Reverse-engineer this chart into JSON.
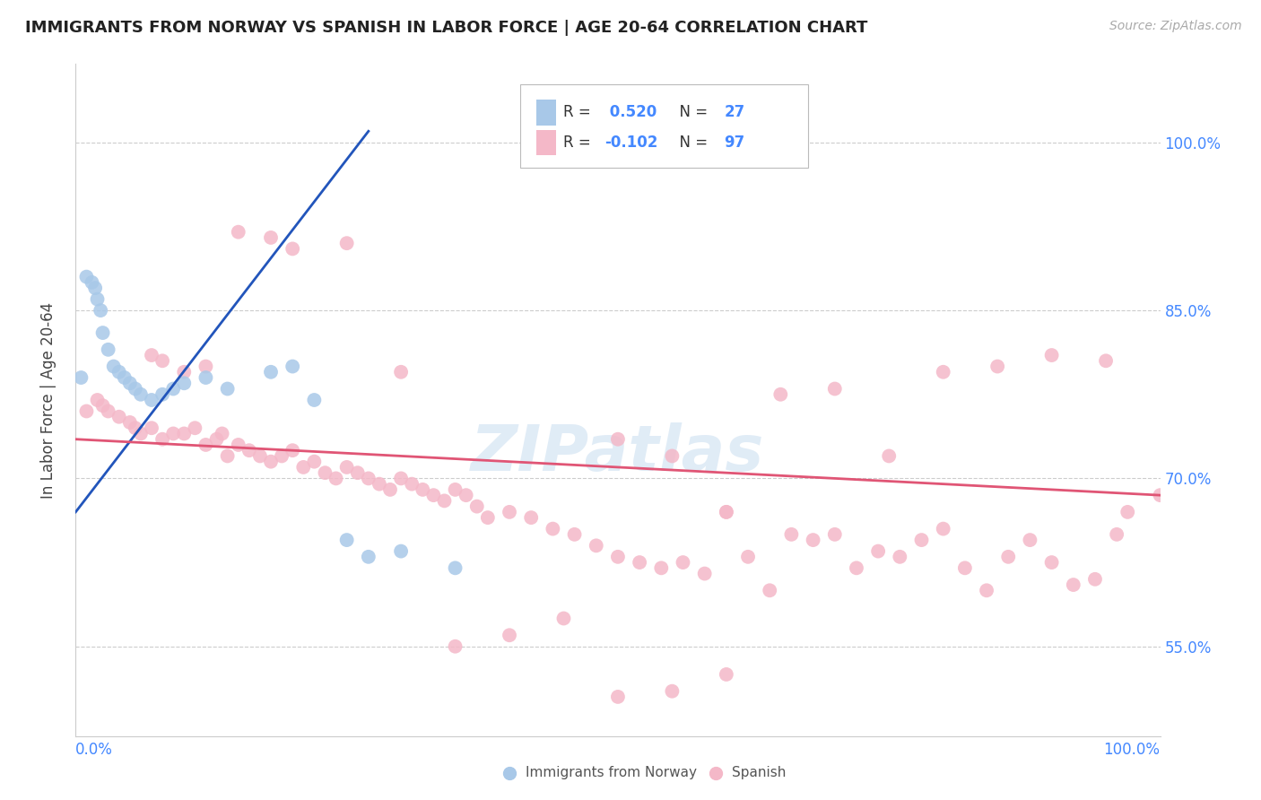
{
  "title": "IMMIGRANTS FROM NORWAY VS SPANISH IN LABOR FORCE | AGE 20-64 CORRELATION CHART",
  "source": "Source: ZipAtlas.com",
  "ylabel": "In Labor Force | Age 20-64",
  "norway_color": "#a8c8e8",
  "spanish_color": "#f4b8c8",
  "norway_line_color": "#2255bb",
  "spanish_line_color": "#e05575",
  "legend_norway_R": "0.520",
  "legend_norway_N": "27",
  "legend_spanish_R": "-0.102",
  "legend_spanish_N": "97",
  "watermark": "ZIPatlas",
  "norway_x": [
    0.5,
    1.0,
    1.5,
    1.8,
    2.0,
    2.3,
    2.5,
    3.0,
    3.5,
    4.0,
    4.5,
    5.0,
    5.5,
    6.0,
    7.0,
    8.0,
    9.0,
    10.0,
    12.0,
    14.0,
    18.0,
    20.0,
    22.0,
    25.0,
    27.0,
    30.0,
    35.0
  ],
  "norway_y": [
    79.0,
    88.0,
    87.5,
    87.0,
    86.0,
    85.0,
    83.0,
    81.5,
    80.0,
    79.5,
    79.0,
    78.5,
    78.0,
    77.5,
    77.0,
    77.5,
    78.0,
    78.5,
    79.0,
    78.0,
    79.5,
    80.0,
    77.0,
    64.5,
    63.0,
    63.5,
    62.0
  ],
  "spanish_x": [
    1.0,
    2.0,
    2.5,
    3.0,
    4.0,
    5.0,
    5.5,
    6.0,
    7.0,
    8.0,
    9.0,
    10.0,
    11.0,
    12.0,
    13.0,
    13.5,
    14.0,
    15.0,
    16.0,
    17.0,
    18.0,
    19.0,
    20.0,
    21.0,
    22.0,
    23.0,
    24.0,
    25.0,
    26.0,
    27.0,
    28.0,
    29.0,
    30.0,
    31.0,
    32.0,
    33.0,
    34.0,
    35.0,
    36.0,
    37.0,
    38.0,
    40.0,
    42.0,
    44.0,
    46.0,
    48.0,
    50.0,
    52.0,
    54.0,
    56.0,
    58.0,
    60.0,
    62.0,
    64.0,
    66.0,
    68.0,
    70.0,
    72.0,
    74.0,
    76.0,
    78.0,
    80.0,
    82.0,
    84.0,
    86.0,
    88.0,
    90.0,
    92.0,
    94.0,
    96.0,
    97.0,
    7.0,
    8.0,
    10.0,
    12.0,
    15.0,
    18.0,
    20.0,
    25.0,
    30.0,
    35.0,
    40.0,
    45.0,
    50.0,
    55.0,
    60.0,
    65.0,
    70.0,
    75.0,
    80.0,
    85.0,
    90.0,
    95.0,
    100.0,
    50.0,
    55.0,
    60.0
  ],
  "spanish_y": [
    76.0,
    77.0,
    76.5,
    76.0,
    75.5,
    75.0,
    74.5,
    74.0,
    74.5,
    73.5,
    74.0,
    74.0,
    74.5,
    73.0,
    73.5,
    74.0,
    72.0,
    73.0,
    72.5,
    72.0,
    71.5,
    72.0,
    72.5,
    71.0,
    71.5,
    70.5,
    70.0,
    71.0,
    70.5,
    70.0,
    69.5,
    69.0,
    70.0,
    69.5,
    69.0,
    68.5,
    68.0,
    69.0,
    68.5,
    67.5,
    66.5,
    67.0,
    66.5,
    65.5,
    65.0,
    64.0,
    63.0,
    62.5,
    62.0,
    62.5,
    61.5,
    67.0,
    63.0,
    60.0,
    65.0,
    64.5,
    65.0,
    62.0,
    63.5,
    63.0,
    64.5,
    65.5,
    62.0,
    60.0,
    63.0,
    64.5,
    62.5,
    60.5,
    61.0,
    65.0,
    67.0,
    81.0,
    80.5,
    79.5,
    80.0,
    92.0,
    91.5,
    90.5,
    91.0,
    79.5,
    55.0,
    56.0,
    57.5,
    50.5,
    51.0,
    52.5,
    77.5,
    78.0,
    72.0,
    79.5,
    80.0,
    81.0,
    80.5,
    68.5,
    73.5,
    72.0,
    67.0
  ]
}
